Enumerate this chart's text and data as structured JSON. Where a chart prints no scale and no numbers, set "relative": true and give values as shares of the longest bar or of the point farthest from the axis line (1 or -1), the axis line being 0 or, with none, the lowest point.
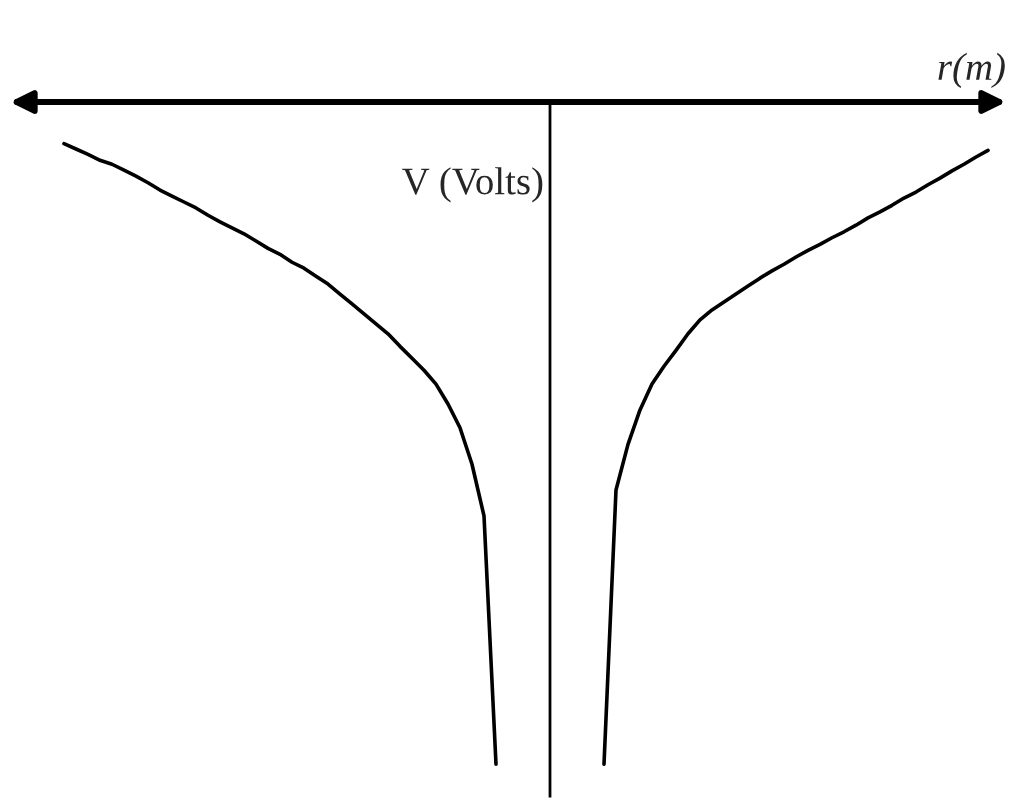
{
  "chart_data": {
    "type": "line",
    "relative": true,
    "xlabel": "r(m)",
    "ylabel": "V (Volts)",
    "tick_labels": false,
    "categories": [
      null,
      null,
      null,
      null,
      null,
      null,
      null,
      null,
      null,
      null,
      null,
      null,
      null,
      null,
      null,
      null,
      null,
      null,
      null,
      null,
      null,
      null,
      null,
      null,
      null,
      null,
      null,
      null,
      null,
      null,
      null,
      null,
      null,
      null,
      null,
      null,
      null,
      null,
      null,
      null,
      null,
      null,
      null,
      null,
      null,
      null,
      null,
      null,
      null,
      null,
      null,
      null,
      null,
      null,
      null,
      null,
      null,
      null,
      null,
      null,
      null,
      null,
      null,
      null,
      null,
      null,
      null,
      null,
      null,
      null,
      null,
      null,
      null,
      null,
      null,
      null,
      null,
      null
    ],
    "series": [
      {
        "color": "#000000",
        "values": [
          -0.063,
          -0.071,
          -0.079,
          -0.088,
          -0.094,
          -0.103,
          -0.112,
          -0.122,
          -0.133,
          -0.142,
          -0.151,
          -0.16,
          -0.171,
          -0.181,
          -0.19,
          -0.199,
          -0.21,
          -0.221,
          -0.23,
          -0.242,
          -0.251,
          -0.263,
          -0.275,
          -0.29,
          -0.305,
          -0.32,
          -0.335,
          -0.35,
          -0.369,
          -0.387,
          -0.405,
          -0.426,
          -0.456,
          -0.492,
          -0.547,
          -0.625,
          -1,
          null,
          null,
          null,
          null,
          null,
          null,
          null,
          null,
          null,
          null,
          null,
          null,
          null,
          null,
          null,
          null,
          null,
          null,
          null,
          null,
          null,
          null,
          null,
          null,
          null,
          null,
          null,
          null,
          null,
          null,
          null,
          null,
          null,
          null,
          null,
          null,
          null,
          null,
          null,
          null,
          null
        ]
      },
      {
        "color": "#000000",
        "values": [
          null,
          null,
          null,
          null,
          null,
          null,
          null,
          null,
          null,
          null,
          null,
          null,
          null,
          null,
          null,
          null,
          null,
          null,
          null,
          null,
          null,
          null,
          null,
          null,
          null,
          null,
          null,
          null,
          null,
          null,
          null,
          null,
          null,
          null,
          null,
          null,
          null,
          null,
          null,
          null,
          null,
          null,
          null,
          null,
          null,
          -1,
          -0.586,
          -0.517,
          -0.465,
          -0.426,
          -0.399,
          -0.375,
          -0.35,
          -0.329,
          -0.314,
          -0.302,
          -0.29,
          -0.278,
          -0.266,
          -0.255,
          -0.245,
          -0.234,
          -0.224,
          -0.215,
          -0.205,
          -0.196,
          -0.186,
          -0.175,
          -0.166,
          -0.156,
          -0.145,
          -0.136,
          -0.125,
          -0.115,
          -0.104,
          -0.094,
          -0.083,
          -0.073
        ]
      }
    ]
  }
}
